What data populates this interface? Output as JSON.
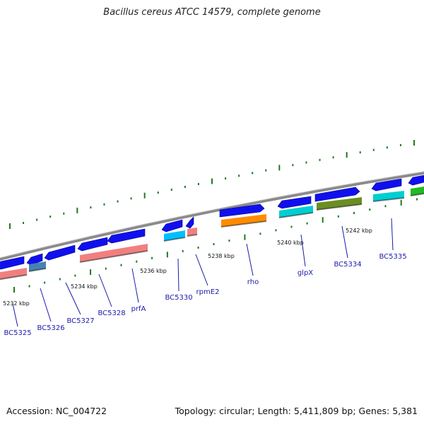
{
  "title": "Bacillus cereus ATCC 14579, complete genome",
  "footer": {
    "accession": "Accession: NC_004722",
    "summary": "Topology: circular; Length: 5,411,809 bp; Genes: 5,381"
  },
  "colors": {
    "backbone": "#8a8a8a",
    "tick": "#1f7a1f",
    "arrow": "#1010ee",
    "label": "#1a1aaa"
  },
  "scale_labels": [
    {
      "text": "5232 kbp"
    },
    {
      "text": "5234 kbp"
    },
    {
      "text": "5236 kbp"
    },
    {
      "text": "5238 kbp"
    },
    {
      "text": "5240 kbp"
    },
    {
      "text": "5242 kbp"
    }
  ],
  "genes": [
    {
      "name": "BC5325",
      "color": "#f08080"
    },
    {
      "name": "BC5326",
      "color": "#4682b4"
    },
    {
      "name": "BC5327",
      "color": "#0000ee"
    },
    {
      "name": "BC5328",
      "color": "#f08080"
    },
    {
      "name": "prfA",
      "color": "#f08080"
    },
    {
      "name": "BC5330",
      "color": "#00bfff"
    },
    {
      "name": "rpmE2",
      "color": "#f08080"
    },
    {
      "name": "rho",
      "color": "#ff8c00"
    },
    {
      "name": "glpX",
      "color": "#00ced1"
    },
    {
      "name": "BC5334",
      "color": "#6b8e23"
    },
    {
      "name": "BC5335",
      "color": "#00ced1"
    },
    {
      "name": "",
      "color": "#22bb22"
    }
  ]
}
